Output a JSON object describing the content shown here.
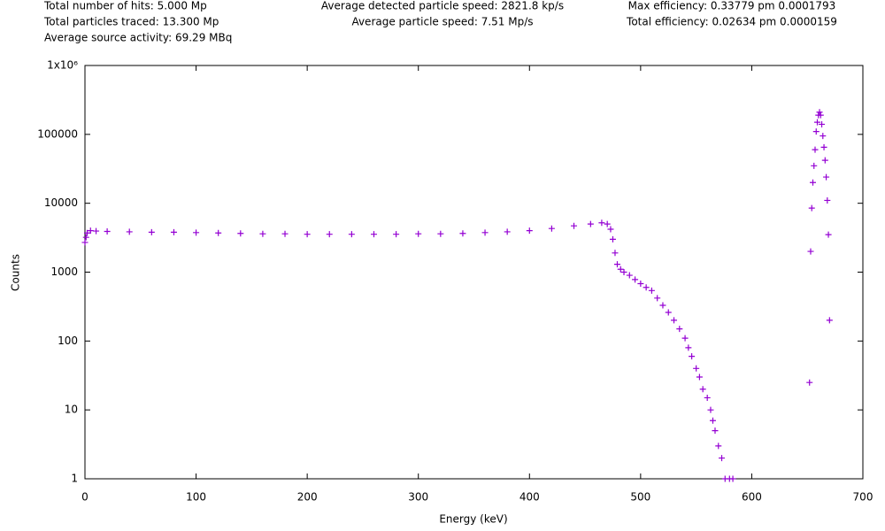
{
  "chart_data": {
    "type": "scatter",
    "annotations": [
      "Total number of hits: 5.000 Mp",
      "Total particles traced: 13.300 Mp",
      "Average source activity: 69.29 MBq",
      "Average detected particle speed: 2821.8 kp/s",
      "Average particle speed: 7.51 Mp/s",
      "Max efficiency: 0.33779 pm 0.0001793",
      "Total efficiency: 0.02634 pm 0.0000159"
    ],
    "x_label": "Energy (keV)",
    "y_label": "Counts",
    "log_y": true,
    "color": "#9400d3",
    "xlim": [
      0,
      700
    ],
    "xticks": [
      0,
      100,
      200,
      300,
      400,
      500,
      600,
      700
    ],
    "ylim": [
      1,
      1000000
    ],
    "yticks": [
      1,
      10,
      100,
      1000,
      10000,
      100000,
      {
        "value": 1000000,
        "label": "1x10⁶"
      }
    ],
    "x": [
      0,
      1,
      2,
      5,
      10,
      20,
      40,
      60,
      80,
      100,
      120,
      140,
      160,
      180,
      200,
      220,
      240,
      260,
      280,
      300,
      320,
      340,
      360,
      380,
      400,
      420,
      440,
      455,
      465,
      470,
      473,
      475,
      477,
      479,
      482,
      485,
      490,
      495,
      500,
      505,
      510,
      515,
      520,
      525,
      530,
      535,
      540,
      543,
      546,
      550,
      553,
      556,
      560,
      563,
      565,
      567,
      570,
      573,
      576,
      580,
      583,
      652,
      653,
      654,
      655,
      656,
      657,
      658,
      659,
      660,
      661,
      662,
      663,
      664,
      665,
      666,
      667,
      668,
      669,
      670
    ],
    "values": [
      2700,
      3200,
      3700,
      4000,
      3950,
      3900,
      3850,
      3800,
      3800,
      3750,
      3700,
      3650,
      3600,
      3600,
      3550,
      3550,
      3550,
      3550,
      3550,
      3600,
      3600,
      3650,
      3750,
      3850,
      4000,
      4300,
      4700,
      5000,
      5200,
      5000,
      4200,
      3000,
      1900,
      1300,
      1100,
      1000,
      900,
      780,
      680,
      600,
      540,
      420,
      330,
      260,
      200,
      150,
      110,
      80,
      60,
      40,
      30,
      20,
      15,
      10,
      7,
      5,
      3,
      2,
      1,
      1,
      1,
      25,
      2000,
      8500,
      20000,
      35000,
      60000,
      110000,
      150000,
      190000,
      210000,
      190000,
      140000,
      95000,
      65000,
      42000,
      24000,
      11000,
      3500,
      200
    ]
  }
}
